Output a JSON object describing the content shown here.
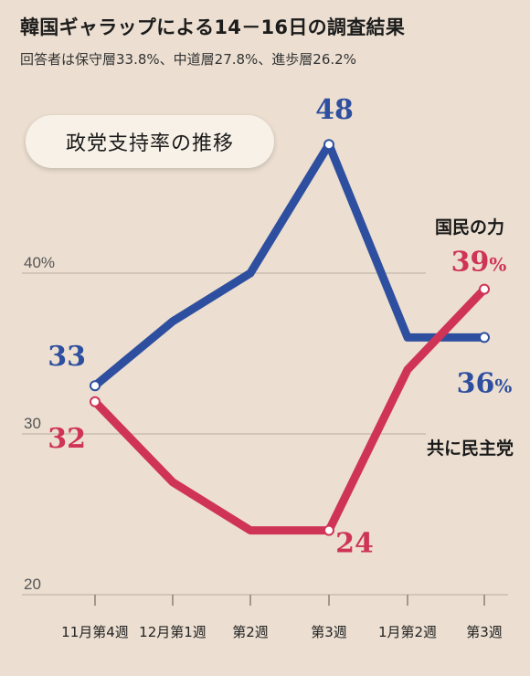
{
  "header": {
    "title": "韓国ギャラップによる14－16日の調査結果",
    "subtitle": "回答者は保守層33.8%、中道層27.8%、進歩層26.2%"
  },
  "panel_label": "政党支持率の推移",
  "colors": {
    "blue_series": "#2e4f9f",
    "red_series": "#cf3457",
    "background": "#ecdfd1"
  },
  "chart_data": {
    "type": "line",
    "title": "政党支持率の推移",
    "categories": [
      "11月第4週",
      "12月第1週",
      "第2週",
      "第3週",
      "1月第2週",
      "第3週"
    ],
    "ylim": [
      20,
      48
    ],
    "yticks": [
      {
        "value": 40,
        "label": "40%"
      },
      {
        "value": 30,
        "label": "30"
      },
      {
        "value": 20,
        "label": "20"
      }
    ],
    "grid": true,
    "series": [
      {
        "name": "国民の力",
        "color": "#2e4f9f",
        "values": [
          33,
          37,
          40,
          48,
          36,
          36
        ],
        "labels": [
          {
            "index": 0,
            "text": "33"
          },
          {
            "index": 3,
            "text": "48"
          },
          {
            "index": 5,
            "text": "36",
            "suffix": "%"
          }
        ]
      },
      {
        "name": "共に民主党",
        "color": "#cf3457",
        "values": [
          32,
          27,
          24,
          24,
          34,
          39
        ],
        "labels": [
          {
            "index": 0,
            "text": "32"
          },
          {
            "index": 3,
            "text": "24"
          },
          {
            "index": 5,
            "text": "39",
            "suffix": "%"
          }
        ]
      }
    ],
    "legend": [
      {
        "text": "国民の力",
        "placement": "right-upper"
      },
      {
        "text": "共に民主党",
        "placement": "right-lower"
      }
    ]
  }
}
